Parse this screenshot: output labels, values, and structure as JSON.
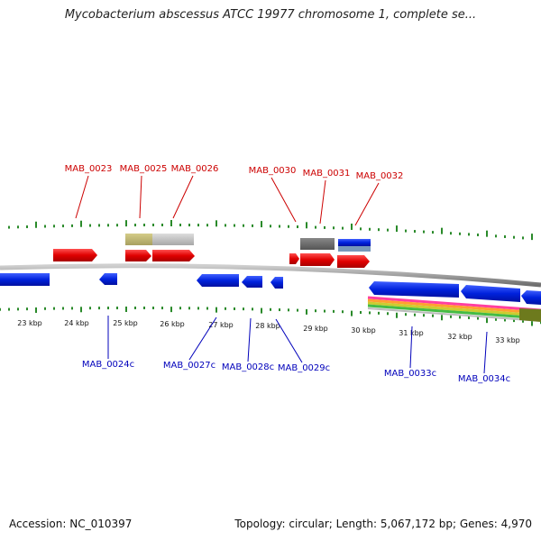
{
  "title": "Mycobacterium abscessus ATCC 19977 chromosome 1, complete se...",
  "footer": {
    "accession": "Accession: NC_010397",
    "topology": "Topology: circular; Length: 5,067,172 bp; Genes: 4,970"
  },
  "colors": {
    "forward_gene": "#e00000",
    "reverse_gene": "#0022dd",
    "backbone": "#888888",
    "tick": "#2a8a2a"
  },
  "ruler_labels": [
    "23 kbp",
    "24 kbp",
    "25 kbp",
    "26 kbp",
    "27 kbp",
    "28 kbp",
    "29 kbp",
    "30 kbp",
    "31 kbp",
    "32 kbp",
    "33 kbp"
  ],
  "top_labels": [
    "MAB_0023",
    "MAB_0025",
    "MAB_0026",
    "MAB_0030",
    "MAB_0031",
    "MAB_0032"
  ],
  "bottom_labels": [
    "MAB_0024c",
    "MAB_0027c",
    "MAB_0028c",
    "MAB_0029c",
    "MAB_0033c",
    "MAB_0034c"
  ]
}
